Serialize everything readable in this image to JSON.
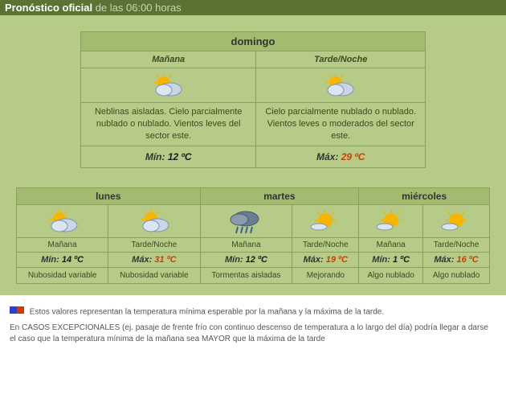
{
  "header": {
    "strong": "Pronóstico oficial",
    "light": "de las 06:00 horas"
  },
  "today": {
    "dayName": "domingo",
    "morning": {
      "label": "Mañana",
      "desc": "Neblinas aisladas. Cielo parcialmente nublado o nublado. Vientos leves del sector este.",
      "icon": "sun-cloud"
    },
    "evening": {
      "label": "Tarde/Noche",
      "desc": "Cielo parcialmente nublado o nublado. Vientos leves o moderados del sector este.",
      "icon": "sun-cloud"
    },
    "minLabel": "Mín:",
    "minVal": "12 ºC",
    "maxLabel": "Máx:",
    "maxVal": "29 ºC"
  },
  "days": [
    {
      "name": "lunes",
      "m": {
        "label": "Mañana",
        "icon": "sun-cloud",
        "tlabel": "Mín:",
        "tval": "14 ºC",
        "tclass": "min",
        "desc": "Nubosidad variable"
      },
      "e": {
        "label": "Tarde/Noche",
        "icon": "sun-cloud",
        "tlabel": "Máx:",
        "tval": "31 ºC",
        "tclass": "max",
        "desc": "Nubosidad variable"
      }
    },
    {
      "name": "martes",
      "m": {
        "label": "Mañana",
        "icon": "storm",
        "tlabel": "Mín:",
        "tval": "12 ºC",
        "tclass": "min",
        "desc": "Tormentas aisladas"
      },
      "e": {
        "label": "Tarde/Noche",
        "icon": "sun-wisp",
        "tlabel": "Máx:",
        "tval": "19 ºC",
        "tclass": "max",
        "desc": "Mejorando"
      }
    },
    {
      "name": "miércoles",
      "m": {
        "label": "Mañana",
        "icon": "sun-wisp",
        "tlabel": "Mín:",
        "tval": "1 ºC",
        "tclass": "min",
        "desc": "Algo nublado"
      },
      "e": {
        "label": "Tarde/Noche",
        "icon": "sun-wisp",
        "tlabel": "Máx:",
        "tval": "16 ºC",
        "tclass": "max",
        "desc": "Algo nublado"
      }
    }
  ],
  "footer": {
    "swatch1": "#2a3fd8",
    "swatch2": "#d43a00",
    "note1": "Estos valores representan la temperatura mínima esperable por la mañana y la máxima de la tarde.",
    "note2": "En CASOS EXCEPCIONALES (ej. pasaje de frente frío con continuo descenso de temperatura a lo largo del día) podría llegar a darse el caso que la temperatura mínima de la mañana sea MAYOR que la máxima de la tarde"
  },
  "icons": {
    "sunColor": "#f7b500",
    "cloudColor": "#c9d6e8",
    "cloudStroke": "#7f93b0",
    "darkCloud": "#6b7d94",
    "rainColor": "#3a5fa0"
  }
}
